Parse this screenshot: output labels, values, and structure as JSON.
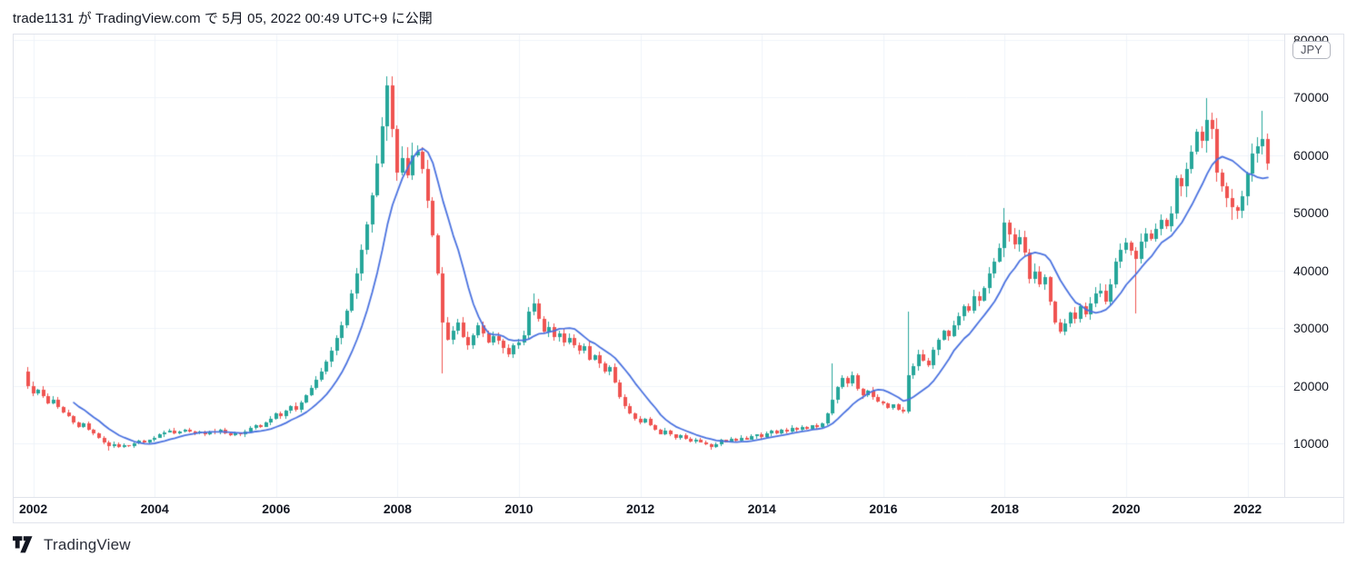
{
  "header": {
    "published_line": "trade1131 が TradingView.com で 5月 05, 2022 00:49 UTC+9 に公開"
  },
  "price_axis": {
    "currency_badge": "JPY",
    "ticks": [
      80000,
      70000,
      60000,
      50000,
      40000,
      30000,
      20000,
      10000
    ]
  },
  "time_axis": {
    "ticks": [
      {
        "label": "2002",
        "m": 1
      },
      {
        "label": "2004",
        "m": 25
      },
      {
        "label": "2006",
        "m": 49
      },
      {
        "label": "2008",
        "m": 73
      },
      {
        "label": "2010",
        "m": 97
      },
      {
        "label": "2012",
        "m": 121
      },
      {
        "label": "2014",
        "m": 145
      },
      {
        "label": "2016",
        "m": 169
      },
      {
        "label": "2018",
        "m": 193
      },
      {
        "label": "2020",
        "m": 217
      },
      {
        "label": "2022",
        "m": 241
      }
    ]
  },
  "footer": {
    "brand": "TradingView"
  },
  "colors": {
    "up": "#26a69a",
    "down": "#ef5350",
    "ma_line": "#4a72e0",
    "grid": "#f0f3fa",
    "border": "#e0e3eb",
    "axis_text": "#131722"
  },
  "chart_data": {
    "type": "candlestick",
    "overlay": {
      "type": "line",
      "name": "SMA",
      "period": 10
    },
    "timeframe": "monthly",
    "currency": "JPY",
    "start": "2001-12",
    "first_open": 22500,
    "ylim": [
      700,
      81000
    ],
    "y_ticks": [
      10000,
      20000,
      30000,
      40000,
      50000,
      60000,
      70000,
      80000
    ],
    "grid": true,
    "closes": [
      20000,
      18600,
      19300,
      18200,
      17000,
      17600,
      16300,
      15400,
      14700,
      13600,
      12900,
      13400,
      12400,
      11700,
      11000,
      10100,
      9500,
      9900,
      9300,
      9700,
      9500,
      10000,
      10400,
      10100,
      10600,
      11000,
      11500,
      11900,
      12200,
      11800,
      12100,
      12400,
      12000,
      11700,
      12000,
      11600,
      12100,
      11900,
      12300,
      11800,
      11400,
      11700,
      11500,
      12000,
      12600,
      13200,
      12900,
      13600,
      14300,
      15200,
      14700,
      15600,
      16500,
      15900,
      17100,
      18300,
      19600,
      21000,
      22400,
      24100,
      26000,
      28200,
      30500,
      33000,
      36000,
      39500,
      43500,
      48000,
      53000,
      58500,
      65000,
      72000,
      64500,
      57000,
      59500,
      56500,
      60000,
      60500,
      57500,
      52000,
      46000,
      39500,
      31000,
      28000,
      29500,
      31000,
      28500,
      27000,
      28800,
      30500,
      29000,
      27500,
      28600,
      27800,
      26500,
      25500,
      27000,
      27500,
      28700,
      32800,
      34200,
      31500,
      29300,
      30200,
      28400,
      29000,
      27500,
      28300,
      27000,
      26000,
      26800,
      24500,
      25300,
      23800,
      22500,
      23200,
      20500,
      18000,
      16500,
      15200,
      14300,
      13600,
      14200,
      13100,
      12400,
      11600,
      12200,
      11500,
      10900,
      11400,
      10800,
      10300,
      10700,
      10200,
      9800,
      9400,
      9900,
      10600,
      10200,
      10800,
      10400,
      11000,
      10700,
      11200,
      11500,
      11100,
      11700,
      12200,
      11800,
      12400,
      12100,
      12700,
      12300,
      12900,
      12500,
      13100,
      12800,
      13500,
      15200,
      17500,
      19800,
      21300,
      20400,
      21800,
      19500,
      18300,
      19200,
      18000,
      17200,
      16900,
      16200,
      16700,
      15800,
      15500,
      21800,
      23400,
      25500,
      24300,
      23600,
      26200,
      28000,
      29500,
      28600,
      30400,
      32000,
      33800,
      33000,
      35500,
      34800,
      37000,
      39500,
      41500,
      43800,
      48200,
      46200,
      44500,
      45800,
      43000,
      38500,
      39800,
      37500,
      38800,
      34500,
      31000,
      29300,
      30800,
      32600,
      31500,
      33800,
      32400,
      34200,
      36000,
      36500,
      34600,
      37500,
      41500,
      43500,
      44800,
      43400,
      42000,
      45000,
      46300,
      45500,
      47200,
      48800,
      47600,
      49800,
      56000,
      54500,
      57500,
      60500,
      64000,
      62500,
      66000,
      64500,
      57000,
      54500,
      52500,
      51000,
      50300,
      52800,
      56800,
      60200,
      61500,
      62800,
      58500
    ],
    "wick_overrides": {
      "2001-12": [
        23200,
        19500
      ],
      "2003-04": [
        null,
        8800
      ],
      "2007-10": [
        66500,
        null
      ],
      "2007-11": [
        73600,
        62500
      ],
      "2008-10": [
        null,
        22200
      ],
      "2010-04": [
        36000,
        null
      ],
      "2013-03": [
        null,
        8900
      ],
      "2015-03": [
        23800,
        null
      ],
      "2016-06": [
        32800,
        15200
      ],
      "2018-01": [
        50800,
        null
      ],
      "2019-11": [
        null,
        37000
      ],
      "2020-03": [
        null,
        32500
      ],
      "2021-05": [
        69800,
        null
      ],
      "2021-10": [
        null,
        48700
      ],
      "2022-04": [
        67700,
        null
      ]
    }
  }
}
